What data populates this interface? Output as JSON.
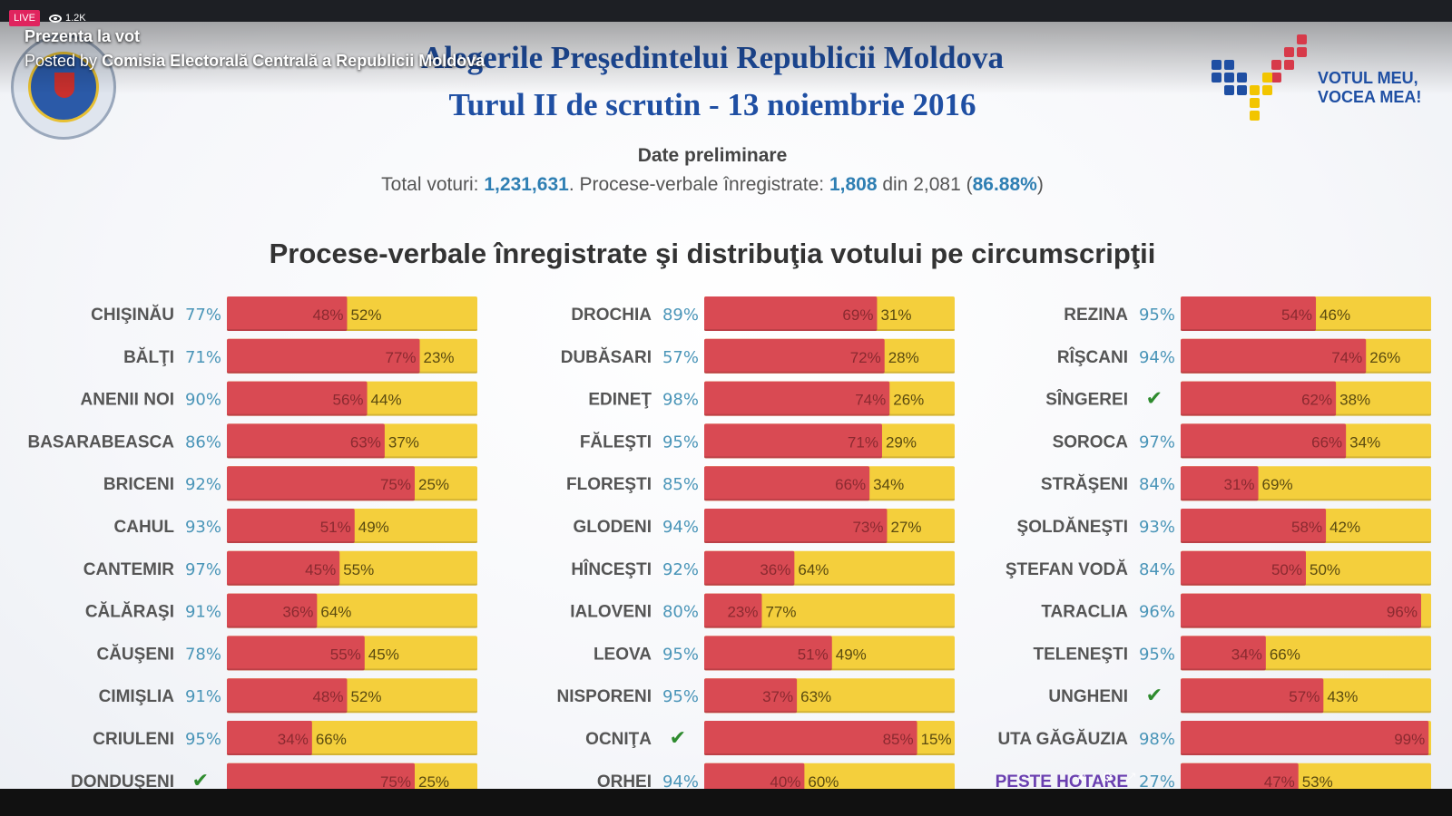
{
  "stream": {
    "live_label": "LIVE",
    "viewers": "1.2K",
    "title": "Prezenta la vot",
    "posted_by_prefix": "Posted by",
    "posted_by_name": "Comisia Electorală Centrală a Republicii Moldova"
  },
  "header": {
    "line1": "Alegerile Preşedintelui Republicii Moldova",
    "line2": "Turul II de scrutin - 13 noiembrie 2016",
    "subtitle": "Date preliminare",
    "totals_label": "Total voturi:",
    "total_votes": "1,231,631",
    "pv_label": ". Procese-verbale înregistrate:",
    "pv_registered": "1,808",
    "pv_of": "din 2,081 (",
    "pv_percent": "86.88%",
    "pv_close": ")"
  },
  "logo": {
    "line1": "VOTUL MEU,",
    "line2": "VOCEA MEA!"
  },
  "colors": {
    "red": "#d94a53",
    "yellow": "#f4cf3c",
    "teal": "#4a95b8",
    "blue_title": "#1f4fa3",
    "purple": "#6a3fb0",
    "check": "#2e8b2e"
  },
  "chart_data": {
    "type": "bar",
    "stacked": true,
    "orientation": "horizontal",
    "title": "Procese-verbale înregistrate şi distribuţia votului pe circumscripţii",
    "series": [
      "red",
      "yellow"
    ],
    "columns": [
      [
        {
          "name": "CHIŞINĂU",
          "pv": "77%",
          "red": 48,
          "yellow": 52
        },
        {
          "name": "BĂLŢI",
          "pv": "71%",
          "red": 77,
          "yellow": 23
        },
        {
          "name": "ANENII NOI",
          "pv": "90%",
          "red": 56,
          "yellow": 44
        },
        {
          "name": "BASARABEASCA",
          "pv": "86%",
          "red": 63,
          "yellow": 37
        },
        {
          "name": "BRICENI",
          "pv": "92%",
          "red": 75,
          "yellow": 25
        },
        {
          "name": "CAHUL",
          "pv": "93%",
          "red": 51,
          "yellow": 49
        },
        {
          "name": "CANTEMIR",
          "pv": "97%",
          "red": 45,
          "yellow": 55
        },
        {
          "name": "CĂLĂRAŞI",
          "pv": "91%",
          "red": 36,
          "yellow": 64
        },
        {
          "name": "CĂUŞENI",
          "pv": "78%",
          "red": 55,
          "yellow": 45
        },
        {
          "name": "CIMIŞLIA",
          "pv": "91%",
          "red": 48,
          "yellow": 52
        },
        {
          "name": "CRIULENI",
          "pv": "95%",
          "red": 34,
          "yellow": 66
        },
        {
          "name": "DONDUŞENI",
          "pv": "✔",
          "red": 75,
          "yellow": 25
        }
      ],
      [
        {
          "name": "DROCHIA",
          "pv": "89%",
          "red": 69,
          "yellow": 31
        },
        {
          "name": "DUBĂSARI",
          "pv": "57%",
          "red": 72,
          "yellow": 28
        },
        {
          "name": "EDINEŢ",
          "pv": "98%",
          "red": 74,
          "yellow": 26
        },
        {
          "name": "FĂLEŞTI",
          "pv": "95%",
          "red": 71,
          "yellow": 29
        },
        {
          "name": "FLOREŞTI",
          "pv": "85%",
          "red": 66,
          "yellow": 34
        },
        {
          "name": "GLODENI",
          "pv": "94%",
          "red": 73,
          "yellow": 27
        },
        {
          "name": "HÎNCEŞTI",
          "pv": "92%",
          "red": 36,
          "yellow": 64
        },
        {
          "name": "IALOVENI",
          "pv": "80%",
          "red": 23,
          "yellow": 77
        },
        {
          "name": "LEOVA",
          "pv": "95%",
          "red": 51,
          "yellow": 49
        },
        {
          "name": "NISPORENI",
          "pv": "95%",
          "red": 37,
          "yellow": 63
        },
        {
          "name": "OCNIŢA",
          "pv": "✔",
          "red": 85,
          "yellow": 15
        },
        {
          "name": "ORHEI",
          "pv": "94%",
          "red": 40,
          "yellow": 60
        }
      ],
      [
        {
          "name": "REZINA",
          "pv": "95%",
          "red": 54,
          "yellow": 46
        },
        {
          "name": "RÎŞCANI",
          "pv": "94%",
          "red": 74,
          "yellow": 26
        },
        {
          "name": "SÎNGEREI",
          "pv": "✔",
          "red": 62,
          "yellow": 38
        },
        {
          "name": "SOROCA",
          "pv": "97%",
          "red": 66,
          "yellow": 34
        },
        {
          "name": "STRĂŞENI",
          "pv": "84%",
          "red": 31,
          "yellow": 69
        },
        {
          "name": "ŞOLDĂNEŞTI",
          "pv": "93%",
          "red": 58,
          "yellow": 42
        },
        {
          "name": "ŞTEFAN VODĂ",
          "pv": "84%",
          "red": 50,
          "yellow": 50
        },
        {
          "name": "TARACLIA",
          "pv": "96%",
          "red": 96,
          "yellow": 4,
          "yellow_label": ""
        },
        {
          "name": "TELENEŞTI",
          "pv": "95%",
          "red": 34,
          "yellow": 66
        },
        {
          "name": "UNGHENI",
          "pv": "✔",
          "red": 57,
          "yellow": 43
        },
        {
          "name": "UTA GĂGĂUZIA",
          "pv": "98%",
          "red": 99,
          "yellow": 1,
          "yellow_label": ""
        },
        {
          "name": "PESTE HOTARE",
          "pv": "27%",
          "red": 47,
          "yellow": 53,
          "highlight": true
        }
      ]
    ]
  }
}
